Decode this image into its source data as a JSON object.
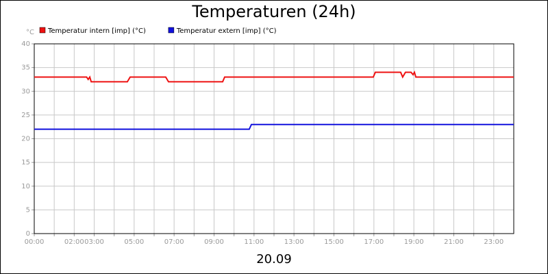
{
  "chart_data": {
    "type": "line",
    "title": "Temperaturen (24h)",
    "xlabel": "20.09",
    "ylabel": "°C",
    "xlim": [
      0,
      24
    ],
    "ylim": [
      0,
      40
    ],
    "yticks": [
      0,
      5,
      10,
      15,
      20,
      25,
      30,
      35,
      40
    ],
    "xticks": [
      {
        "value": 0,
        "label": "00:00"
      },
      {
        "value": 1,
        "label": null
      },
      {
        "value": 2,
        "label": "02:00"
      },
      {
        "value": 3,
        "label": "03:00"
      },
      {
        "value": 4,
        "label": null
      },
      {
        "value": 5,
        "label": "05:00"
      },
      {
        "value": 6,
        "label": null
      },
      {
        "value": 7,
        "label": "07:00"
      },
      {
        "value": 8,
        "label": null
      },
      {
        "value": 9,
        "label": "09:00"
      },
      {
        "value": 10,
        "label": null
      },
      {
        "value": 11,
        "label": "11:00"
      },
      {
        "value": 12,
        "label": null
      },
      {
        "value": 13,
        "label": "13:00"
      },
      {
        "value": 14,
        "label": null
      },
      {
        "value": 15,
        "label": "15:00"
      },
      {
        "value": 16,
        "label": null
      },
      {
        "value": 17,
        "label": "17:00"
      },
      {
        "value": 18,
        "label": null
      },
      {
        "value": 19,
        "label": "19:00"
      },
      {
        "value": 20,
        "label": null
      },
      {
        "value": 21,
        "label": "21:00"
      },
      {
        "value": 22,
        "label": null
      },
      {
        "value": 23,
        "label": "23:00"
      }
    ],
    "grid": true,
    "legend": "top-left",
    "series": [
      {
        "name": "Temperatur intern [imp] (°C)",
        "color": "#ee1111",
        "x": [
          0,
          2.62,
          2.7,
          2.78,
          2.85,
          4.66,
          4.8,
          6.58,
          6.72,
          9.43,
          9.53,
          16.97,
          17.07,
          18.34,
          18.44,
          18.58,
          18.86,
          18.96,
          19.03,
          19.1,
          24
        ],
        "values": [
          33,
          33,
          32.5,
          33,
          32,
          32,
          33,
          33,
          32,
          32,
          33,
          33,
          34,
          34,
          33,
          34,
          34,
          33.5,
          34,
          33,
          33
        ]
      },
      {
        "name": "Temperatur extern [imp] (°C)",
        "color": "#1111dd",
        "x": [
          0,
          10.76,
          10.87,
          24
        ],
        "values": [
          22,
          22,
          23,
          23
        ]
      }
    ]
  }
}
